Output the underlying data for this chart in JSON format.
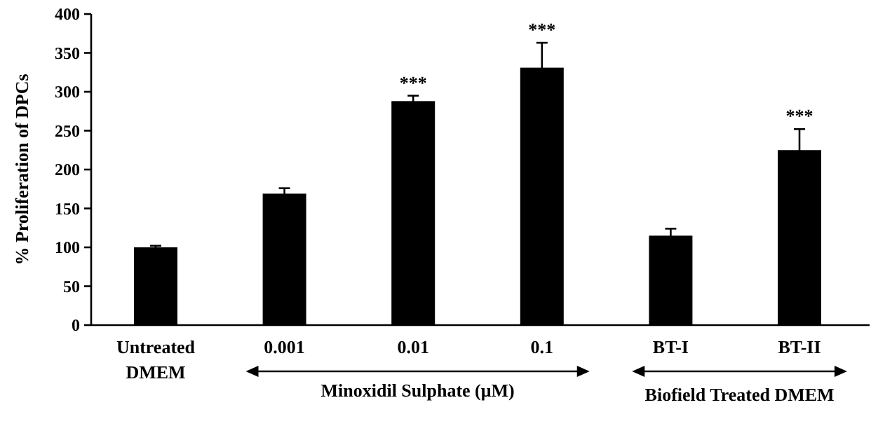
{
  "chart_data": {
    "type": "bar",
    "ylabel": "% Proliferation of DPCs",
    "categories": [
      "Untreated DMEM",
      "0.001",
      "0.01",
      "0.1",
      "BT-I",
      "BT-II"
    ],
    "values": [
      100,
      169,
      288,
      331,
      115,
      225
    ],
    "errors": [
      2,
      7,
      7,
      32,
      9,
      27
    ],
    "color": "#000000",
    "ylim": [
      0,
      400
    ],
    "yticks": [
      0,
      50,
      100,
      150,
      200,
      250,
      300,
      350,
      400
    ],
    "grid": false,
    "annotations": [
      {
        "text": "***",
        "x": "0.01",
        "y": 295
      },
      {
        "text": "***",
        "x": "0.1",
        "y": 363
      },
      {
        "text": "***",
        "x": "BT-II",
        "y": 252
      },
      "Minoxidil Sulphate (μM)",
      "Biofield Treated DMEM"
    ]
  }
}
